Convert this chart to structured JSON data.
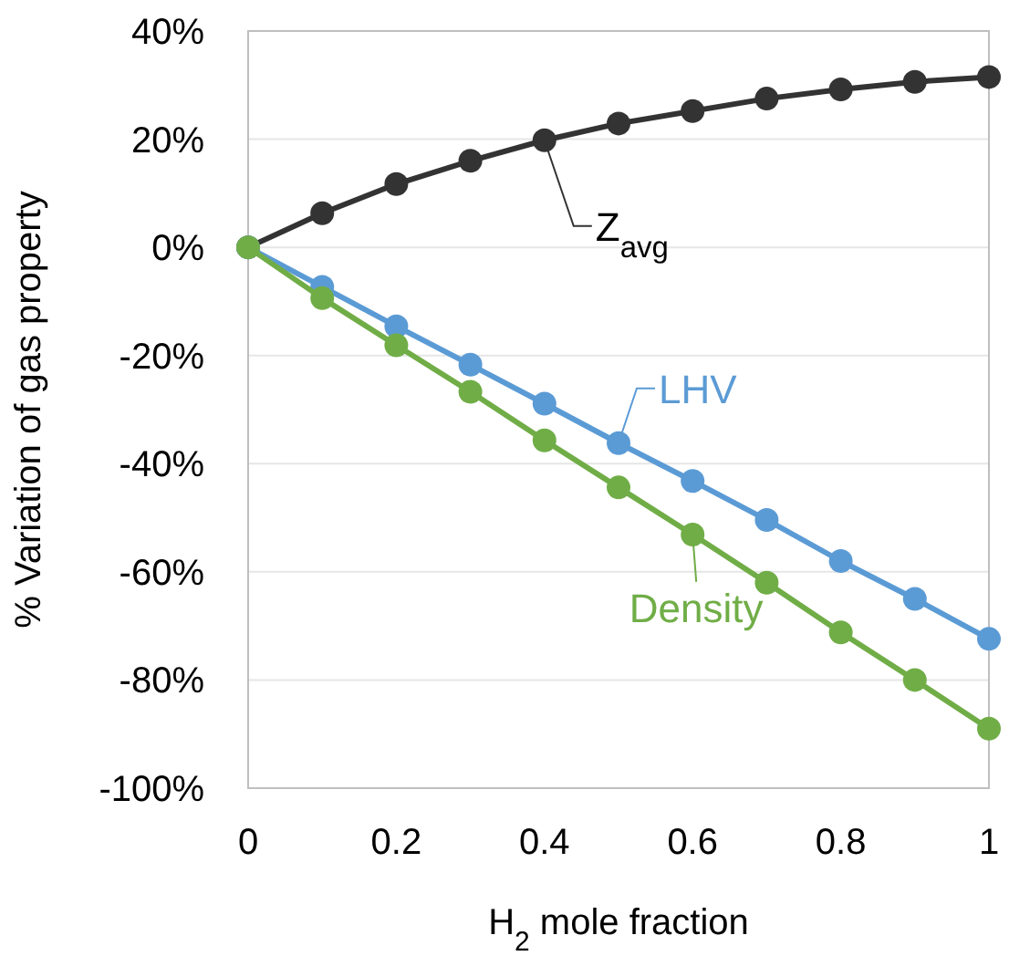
{
  "chart_data": {
    "type": "line",
    "xlabel": "H$_{2}$ mole fraction",
    "ylabel": "% Variation of gas property",
    "x": [
      0,
      0.1,
      0.2,
      0.3,
      0.4,
      0.5,
      0.6,
      0.7,
      0.8,
      0.9,
      1
    ],
    "series": [
      {
        "name": "Z$_{avg}$",
        "color": "#333333",
        "values": [
          0,
          6.3,
          11.7,
          16,
          19.8,
          22.9,
          25.2,
          27.5,
          29.2,
          30.6,
          31.5
        ]
      },
      {
        "name": "LHV",
        "color": "#5b9bd5",
        "values": [
          0,
          -7.3,
          -14.6,
          -21.7,
          -28.9,
          -36.2,
          -43.2,
          -50.4,
          -58,
          -65,
          -72.4
        ]
      },
      {
        "name": "Density",
        "color": "#70ad47",
        "values": [
          0,
          -9.4,
          -18.1,
          -26.7,
          -35.7,
          -44.4,
          -53.1,
          -62,
          -71.2,
          -80,
          -89
        ]
      }
    ],
    "xlim": [
      0,
      1
    ],
    "xticks": [
      0,
      0.2,
      0.4,
      0.6,
      0.8,
      1
    ],
    "ylim": [
      -100,
      40
    ],
    "yticks": [
      {
        "value": -100,
        "label": "-100%"
      },
      {
        "value": -80,
        "label": "-80%"
      },
      {
        "value": -60,
        "label": "-60%"
      },
      {
        "value": -40,
        "label": "-40%"
      },
      {
        "value": -20,
        "label": "-20%"
      },
      {
        "value": 0,
        "label": "0%"
      },
      {
        "value": 20,
        "label": "20%"
      },
      {
        "value": 40,
        "label": "40%"
      }
    ],
    "grid": "y",
    "marker": "circle",
    "line_style": "solid"
  }
}
